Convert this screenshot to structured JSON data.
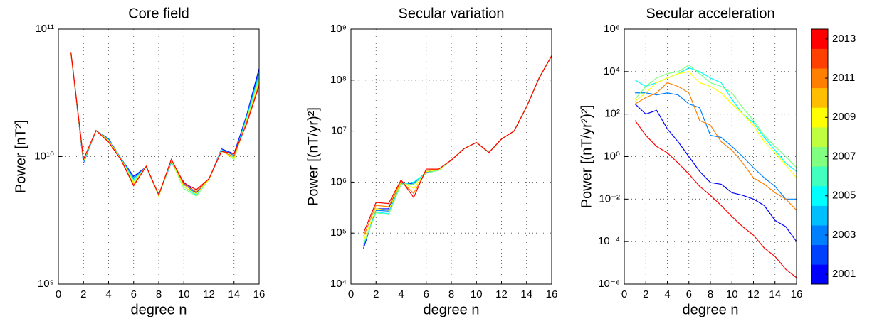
{
  "chart_data": [
    {
      "type": "line",
      "title": "Core field",
      "xlabel": "degree n",
      "ylabel": "Power [nT²]",
      "x": [
        1,
        2,
        3,
        4,
        5,
        6,
        7,
        8,
        9,
        10,
        11,
        12,
        13,
        14,
        15,
        16
      ],
      "xlim": [
        0,
        16
      ],
      "xticks": [
        0,
        2,
        4,
        6,
        8,
        10,
        12,
        14,
        16
      ],
      "ylim": [
        1000000000.0,
        100000000000.0
      ],
      "log_y": true,
      "grid": true,
      "yticks": [
        {
          "value": 1000000000.0,
          "label": "10⁹"
        },
        {
          "value": 10000000000.0,
          "label": "10¹⁰"
        },
        {
          "value": 100000000000.0,
          "label": "10¹¹"
        }
      ],
      "series": [
        {
          "color": "#0000ff",
          "values": [
            65000000000.0,
            8900000000.0,
            16000000000.0,
            13800000000.0,
            9600000000.0,
            7000000000.0,
            8300000000.0,
            5000000000.0,
            9000000000.0,
            6300000000.0,
            5200000000.0,
            6600000000.0,
            11500000000.0,
            10500000000.0,
            21000000000.0,
            49000000000.0
          ]
        },
        {
          "color": "#0080ff",
          "values": [
            65000000000.0,
            9000000000.0,
            16000000000.0,
            13700000000.0,
            9600000000.0,
            6800000000.0,
            8300000000.0,
            5000000000.0,
            9100000000.0,
            6100000000.0,
            5100000000.0,
            6600000000.0,
            11400000000.0,
            10200000000.0,
            20500000000.0,
            46000000000.0
          ]
        },
        {
          "color": "#00ffff",
          "values": [
            65000000000.0,
            9100000000.0,
            16000000000.0,
            13500000000.0,
            9500000000.0,
            6600000000.0,
            8300000000.0,
            4900000000.0,
            9200000000.0,
            5800000000.0,
            5000000000.0,
            6600000000.0,
            11300000000.0,
            9800000000.0,
            20000000000.0,
            43000000000.0
          ]
        },
        {
          "color": "#80ff80",
          "values": [
            65000000000.0,
            9200000000.0,
            16000000000.0,
            13400000000.0,
            9500000000.0,
            6400000000.0,
            8300000000.0,
            4900000000.0,
            9300000000.0,
            5600000000.0,
            4900000000.0,
            6600000000.0,
            11200000000.0,
            9500000000.0,
            19500000000.0,
            41000000000.0
          ]
        },
        {
          "color": "#ffff00",
          "values": [
            65000000000.0,
            9300000000.0,
            16000000000.0,
            13300000000.0,
            9500000000.0,
            6200000000.0,
            8400000000.0,
            4900000000.0,
            9400000000.0,
            5800000000.0,
            5100000000.0,
            6600000000.0,
            11100000000.0,
            9700000000.0,
            19000000000.0,
            39000000000.0
          ]
        },
        {
          "color": "#ff8000",
          "values": [
            66000000000.0,
            9400000000.0,
            16000000000.0,
            13100000000.0,
            9400000000.0,
            6000000000.0,
            8400000000.0,
            5000000000.0,
            9500000000.0,
            6000000000.0,
            5300000000.0,
            6700000000.0,
            11000000000.0,
            10000000000.0,
            18500000000.0,
            37000000000.0
          ]
        },
        {
          "color": "#ff0000",
          "values": [
            66000000000.0,
            9500000000.0,
            16000000000.0,
            13000000000.0,
            9400000000.0,
            5900000000.0,
            8400000000.0,
            5000000000.0,
            9500000000.0,
            6200000000.0,
            5500000000.0,
            6700000000.0,
            11000000000.0,
            10500000000.0,
            18000000000.0,
            36000000000.0
          ]
        }
      ]
    },
    {
      "type": "line",
      "title": "Secular variation",
      "xlabel": "degree n",
      "ylabel": "Power [(nT/yr)²]",
      "x": [
        1,
        2,
        3,
        4,
        5,
        6,
        7,
        8,
        9,
        10,
        11,
        12,
        13,
        14,
        15,
        16
      ],
      "xlim": [
        0,
        16
      ],
      "xticks": [
        0,
        2,
        4,
        6,
        8,
        10,
        12,
        14,
        16
      ],
      "ylim": [
        10000.0,
        1000000000.0
      ],
      "log_y": true,
      "grid": true,
      "yticks": [
        {
          "value": 10000.0,
          "label": "10⁴"
        },
        {
          "value": 100000.0,
          "label": "10⁵"
        },
        {
          "value": 1000000.0,
          "label": "10⁶"
        },
        {
          "value": 10000000.0,
          "label": "10⁷"
        },
        {
          "value": 100000000.0,
          "label": "10⁸"
        },
        {
          "value": 1000000000.0,
          "label": "10⁹"
        }
      ],
      "series": [
        {
          "color": "#0000ff",
          "values": [
            50000.0,
            300000.0,
            300000.0,
            1000000.0,
            900000.0,
            1600000.0,
            1800000.0,
            2700000.0,
            4500000.0,
            6000000.0,
            3800000.0,
            7000000.0,
            10000000.0,
            30000000.0,
            110000000.0,
            300000000.0
          ]
        },
        {
          "color": "#0080ff",
          "values": [
            55000.0,
            280000.0,
            270000.0,
            950000.0,
            950000.0,
            1550000.0,
            1750000.0,
            2700000.0,
            4500000.0,
            6000000.0,
            3800000.0,
            7000000.0,
            10000000.0,
            30000000.0,
            110000000.0,
            300000000.0
          ]
        },
        {
          "color": "#00ffff",
          "values": [
            60000.0,
            260000.0,
            240000.0,
            900000.0,
            1000000.0,
            1500000.0,
            1700000.0,
            2700000.0,
            4500000.0,
            6000000.0,
            3800000.0,
            7000000.0,
            10000000.0,
            30000000.0,
            110000000.0,
            300000000.0
          ]
        },
        {
          "color": "#80ff80",
          "values": [
            60000.0,
            250000.0,
            230000.0,
            900000.0,
            900000.0,
            1500000.0,
            1700000.0,
            2700000.0,
            4500000.0,
            6000000.0,
            3800000.0,
            7000000.0,
            10000000.0,
            30000000.0,
            110000000.0,
            300000000.0
          ]
        },
        {
          "color": "#ffff00",
          "values": [
            70000.0,
            300000.0,
            280000.0,
            1000000.0,
            750000.0,
            1600000.0,
            1750000.0,
            2700000.0,
            4500000.0,
            6000000.0,
            3800000.0,
            7000000.0,
            10000000.0,
            30000000.0,
            110000000.0,
            300000000.0
          ]
        },
        {
          "color": "#ff8000",
          "values": [
            85000.0,
            350000.0,
            330000.0,
            1050000.0,
            600000.0,
            1700000.0,
            1800000.0,
            2700000.0,
            4500000.0,
            6000000.0,
            3800000.0,
            7000000.0,
            10000000.0,
            30000000.0,
            110000000.0,
            300000000.0
          ]
        },
        {
          "color": "#ff0000",
          "values": [
            100000.0,
            400000.0,
            380000.0,
            1100000.0,
            500000.0,
            1800000.0,
            1800000.0,
            2700000.0,
            4500000.0,
            6000000.0,
            3800000.0,
            7000000.0,
            10000000.0,
            30000000.0,
            110000000.0,
            300000000.0
          ]
        }
      ]
    },
    {
      "type": "line",
      "title": "Secular acceleration",
      "xlabel": "degree n",
      "ylabel": "Power [(nT/yr²)²]",
      "x": [
        1,
        2,
        3,
        4,
        5,
        6,
        7,
        8,
        9,
        10,
        11,
        12,
        13,
        14,
        15,
        16
      ],
      "xlim": [
        0,
        16
      ],
      "xticks": [
        0,
        2,
        4,
        6,
        8,
        10,
        12,
        14,
        16
      ],
      "ylim": [
        1e-06,
        1000000.0
      ],
      "log_y": true,
      "grid": true,
      "yticks": [
        {
          "value": 1e-06,
          "label": "10⁻⁶"
        },
        {
          "value": 0.0001,
          "label": "10⁻⁴"
        },
        {
          "value": 0.01,
          "label": "10⁻²"
        },
        {
          "value": 1,
          "label": "10⁰"
        },
        {
          "value": 100.0,
          "label": "10²"
        },
        {
          "value": 10000.0,
          "label": "10⁴"
        },
        {
          "value": 1000000.0,
          "label": "10⁶"
        }
      ],
      "series": [
        {
          "color": "#0000ff",
          "values": [
            300,
            100,
            150,
            20,
            5,
            1,
            0.2,
            0.06,
            0.05,
            0.02,
            0.015,
            0.01,
            0.005,
            0.001,
            0.0005,
            0.0001
          ]
        },
        {
          "color": "#0080ff",
          "values": [
            1000,
            1000,
            800,
            1000,
            800,
            300,
            200,
            10,
            8,
            3,
            1,
            0.3,
            0.1,
            0.04,
            0.01,
            0.01
          ]
        },
        {
          "color": "#00ffff",
          "values": [
            4000,
            2000,
            3000,
            5000,
            8000,
            15000,
            10000,
            5000,
            3000,
            500,
            100,
            40,
            8,
            2,
            0.5,
            0.2
          ]
        },
        {
          "color": "#80ff80",
          "values": [
            500,
            2000,
            5000,
            8000,
            10000,
            20000,
            8000,
            3000,
            2000,
            1000,
            200,
            50,
            10,
            3,
            1,
            0.3
          ]
        },
        {
          "color": "#ffff00",
          "values": [
            400,
            1000,
            3000,
            5000,
            8000,
            10000,
            3000,
            2000,
            1000,
            300,
            100,
            30,
            5,
            1.5,
            0.4,
            0.1
          ]
        },
        {
          "color": "#ff8000",
          "values": [
            300,
            600,
            1000,
            3000,
            2000,
            1000,
            50,
            30,
            5,
            2,
            0.5,
            0.1,
            0.05,
            0.02,
            0.01,
            0.003
          ]
        },
        {
          "color": "#ff0000",
          "values": [
            50,
            10,
            3,
            1.5,
            0.5,
            0.15,
            0.04,
            0.015,
            0.005,
            0.0015,
            0.0005,
            0.0002,
            5e-05,
            2e-05,
            5e-06,
            2e-06
          ]
        }
      ],
      "colorbar": {
        "lim": [
          2000.5,
          2013.5
        ],
        "ticks": [
          2001,
          2003,
          2005,
          2007,
          2009,
          2011,
          2013
        ],
        "colors": [
          "#0000ff",
          "#0040ff",
          "#0080ff",
          "#00bfff",
          "#00ffff",
          "#40ffbf",
          "#80ff80",
          "#bfff40",
          "#ffff00",
          "#ffbf00",
          "#ff8000",
          "#ff4000",
          "#ff0000"
        ]
      }
    }
  ]
}
